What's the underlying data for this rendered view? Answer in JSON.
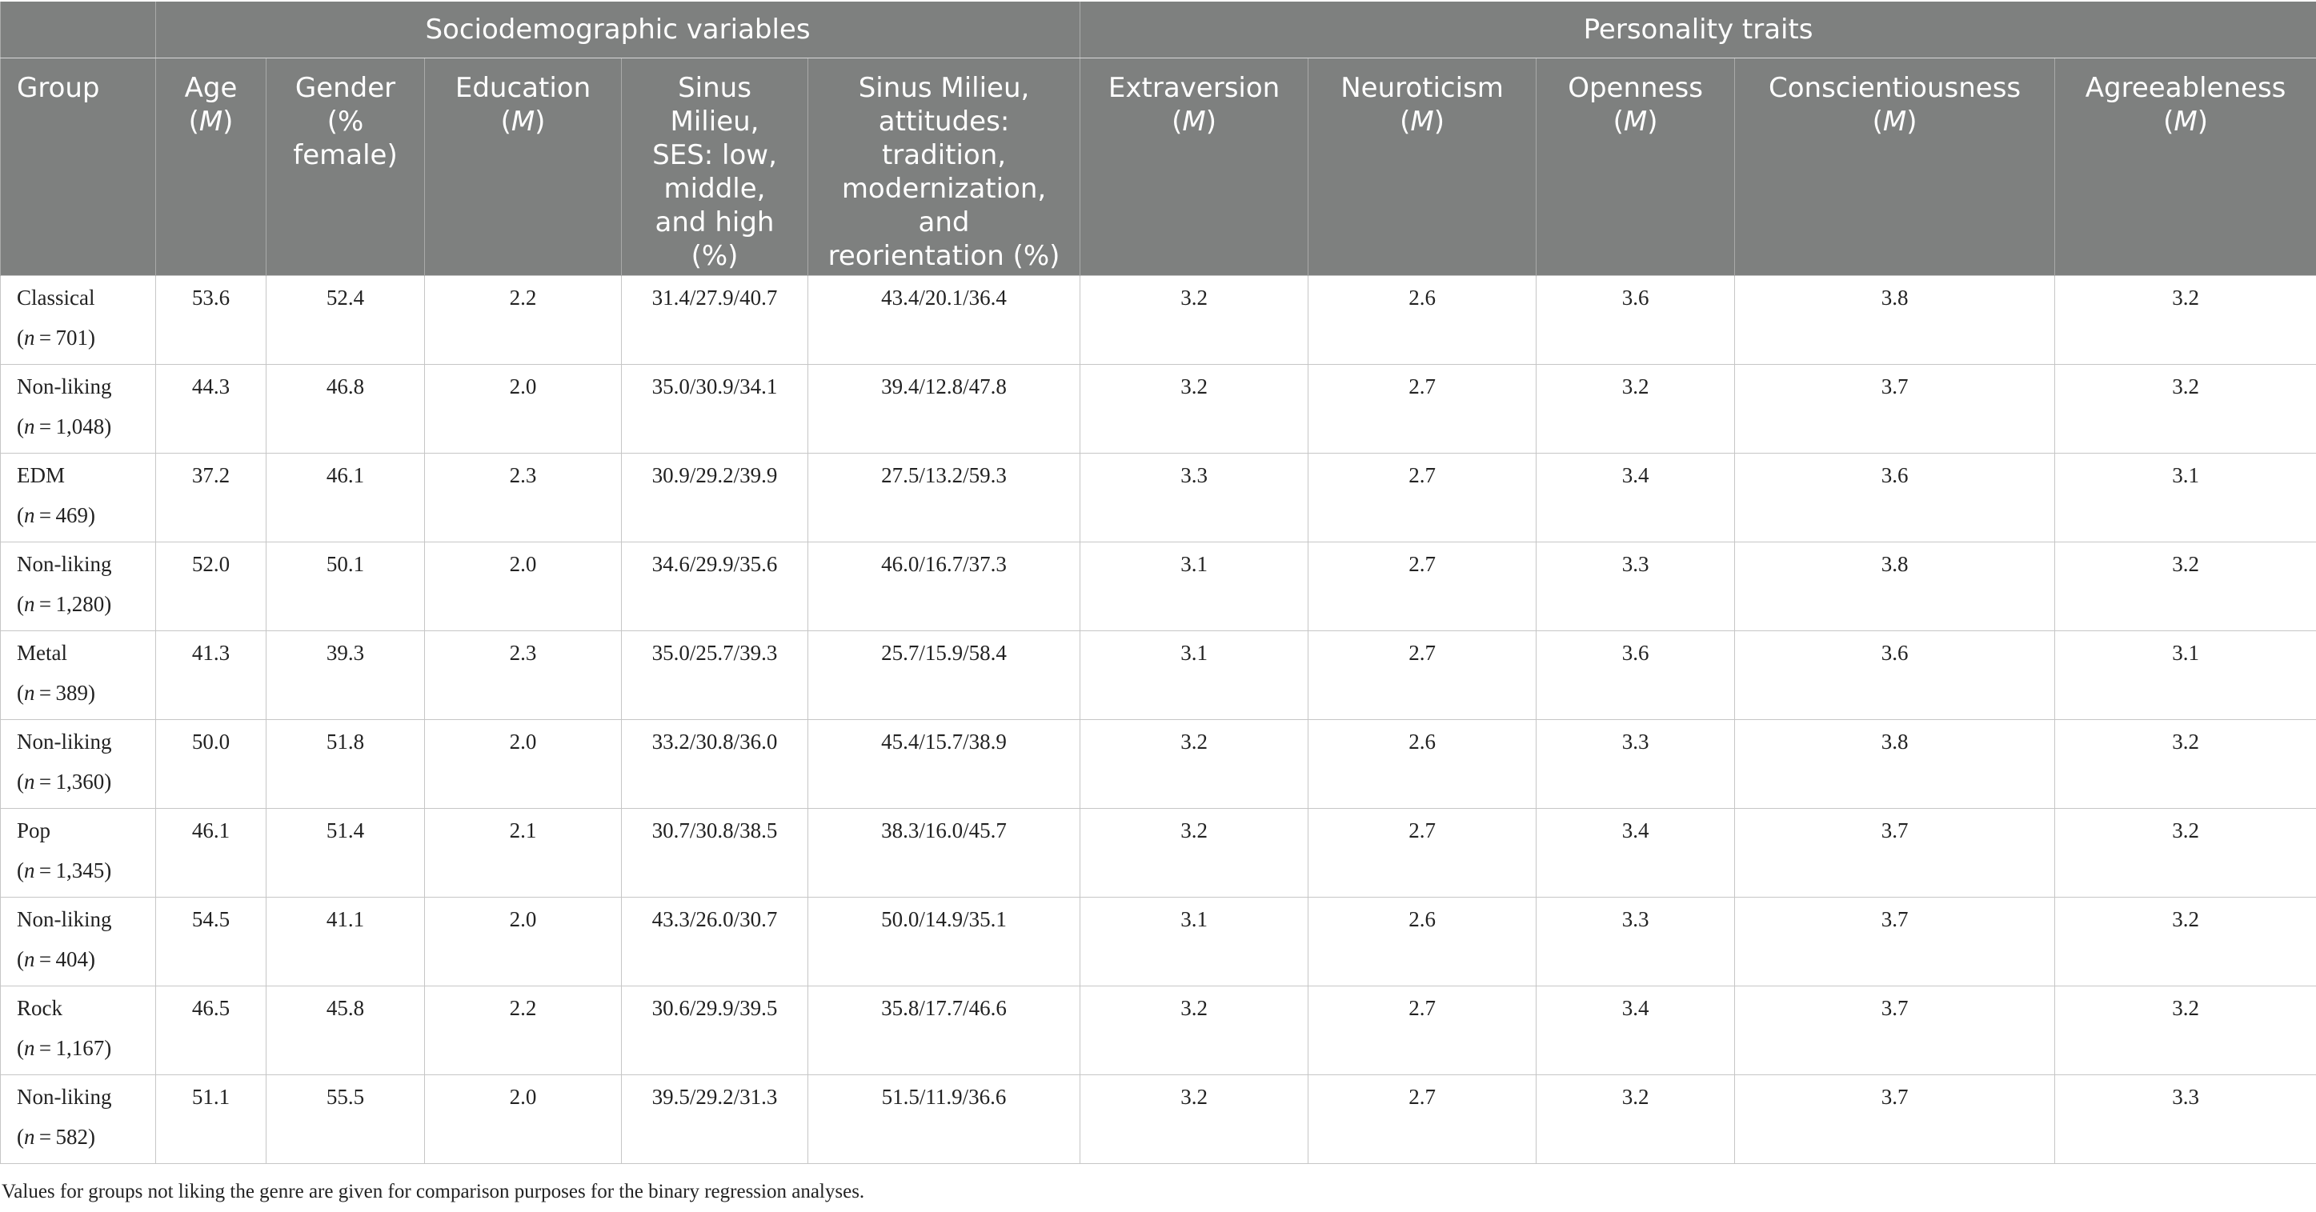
{
  "header_groups": {
    "sociodemographic": "Sociodemographic variables",
    "personality": "Personality traits"
  },
  "columns": {
    "group": "Group",
    "age": "Age",
    "age_stat": "M",
    "gender_line1": "Gender",
    "gender_line2": "(%",
    "gender_line3": "female)",
    "education": "Education",
    "education_stat": "M",
    "ses_line1": "Sinus",
    "ses_line2": "Milieu,",
    "ses_line3": "SES: low,",
    "ses_line4": "middle,",
    "ses_line5": "and high",
    "ses_line6": "(%)",
    "att_line1": "Sinus Milieu,",
    "att_line2": "attitudes:",
    "att_line3": "tradition,",
    "att_line4": "modernization,",
    "att_line5": "and",
    "att_line6": "reorientation (%)",
    "extraversion": "Extraversion",
    "extraversion_stat": "M",
    "neuroticism": "Neuroticism",
    "neuroticism_stat": "M",
    "openness": "Openness",
    "openness_stat": "M",
    "conscientiousness": "Conscientiousness",
    "conscientiousness_stat": "M",
    "agreeableness": "Agreeableness",
    "agreeableness_stat": "M"
  },
  "rows": [
    {
      "group": "Classical",
      "n_var": "n",
      "n_val": " = 701",
      "age": "53.6",
      "gender": "52.4",
      "education": "2.2",
      "ses": "31.4/27.9/40.7",
      "attitudes": "43.4/20.1/36.4",
      "extraversion": "3.2",
      "neuroticism": "2.6",
      "openness": "3.6",
      "conscientiousness": "3.8",
      "agreeableness": "3.2"
    },
    {
      "group": "Non-liking",
      "n_var": "n",
      "n_val": " = 1,048",
      "age": "44.3",
      "gender": "46.8",
      "education": "2.0",
      "ses": "35.0/30.9/34.1",
      "attitudes": "39.4/12.8/47.8",
      "extraversion": "3.2",
      "neuroticism": "2.7",
      "openness": "3.2",
      "conscientiousness": "3.7",
      "agreeableness": "3.2"
    },
    {
      "group": "EDM",
      "n_var": "n",
      "n_val": " = 469",
      "age": "37.2",
      "gender": "46.1",
      "education": "2.3",
      "ses": "30.9/29.2/39.9",
      "attitudes": "27.5/13.2/59.3",
      "extraversion": "3.3",
      "neuroticism": "2.7",
      "openness": "3.4",
      "conscientiousness": "3.6",
      "agreeableness": "3.1"
    },
    {
      "group": "Non-liking",
      "n_var": "n",
      "n_val": " = 1,280",
      "age": "52.0",
      "gender": "50.1",
      "education": "2.0",
      "ses": "34.6/29.9/35.6",
      "attitudes": "46.0/16.7/37.3",
      "extraversion": "3.1",
      "neuroticism": "2.7",
      "openness": "3.3",
      "conscientiousness": "3.8",
      "agreeableness": "3.2"
    },
    {
      "group": "Metal",
      "n_var": "n",
      "n_val": " = 389",
      "age": "41.3",
      "gender": "39.3",
      "education": "2.3",
      "ses": "35.0/25.7/39.3",
      "attitudes": "25.7/15.9/58.4",
      "extraversion": "3.1",
      "neuroticism": "2.7",
      "openness": "3.6",
      "conscientiousness": "3.6",
      "agreeableness": "3.1"
    },
    {
      "group": "Non-liking",
      "n_var": "n",
      "n_val": " = 1,360",
      "age": "50.0",
      "gender": "51.8",
      "education": "2.0",
      "ses": "33.2/30.8/36.0",
      "attitudes": "45.4/15.7/38.9",
      "extraversion": "3.2",
      "neuroticism": "2.6",
      "openness": "3.3",
      "conscientiousness": "3.8",
      "agreeableness": "3.2"
    },
    {
      "group": "Pop",
      "n_var": "n",
      "n_val": " = 1,345",
      "age": "46.1",
      "gender": "51.4",
      "education": "2.1",
      "ses": "30.7/30.8/38.5",
      "attitudes": "38.3/16.0/45.7",
      "extraversion": "3.2",
      "neuroticism": "2.7",
      "openness": "3.4",
      "conscientiousness": "3.7",
      "agreeableness": "3.2"
    },
    {
      "group": "Non-liking",
      "n_var": "n",
      "n_val": " = 404",
      "age": "54.5",
      "gender": "41.1",
      "education": "2.0",
      "ses": "43.3/26.0/30.7",
      "attitudes": "50.0/14.9/35.1",
      "extraversion": "3.1",
      "neuroticism": "2.6",
      "openness": "3.3",
      "conscientiousness": "3.7",
      "agreeableness": "3.2"
    },
    {
      "group": "Rock",
      "n_var": "n",
      "n_val": " = 1,167",
      "age": "46.5",
      "gender": "45.8",
      "education": "2.2",
      "ses": "30.6/29.9/39.5",
      "attitudes": "35.8/17.7/46.6",
      "extraversion": "3.2",
      "neuroticism": "2.7",
      "openness": "3.4",
      "conscientiousness": "3.7",
      "agreeableness": "3.2"
    },
    {
      "group": "Non-liking",
      "n_var": "n",
      "n_val": " = 582",
      "age": "51.1",
      "gender": "55.5",
      "education": "2.0",
      "ses": "39.5/29.2/31.3",
      "attitudes": "51.5/11.9/36.6",
      "extraversion": "3.2",
      "neuroticism": "2.7",
      "openness": "3.2",
      "conscientiousness": "3.7",
      "agreeableness": "3.3"
    }
  ],
  "footnote": "Values for groups not liking the genre are given for comparison purposes for the binary regression analyses."
}
